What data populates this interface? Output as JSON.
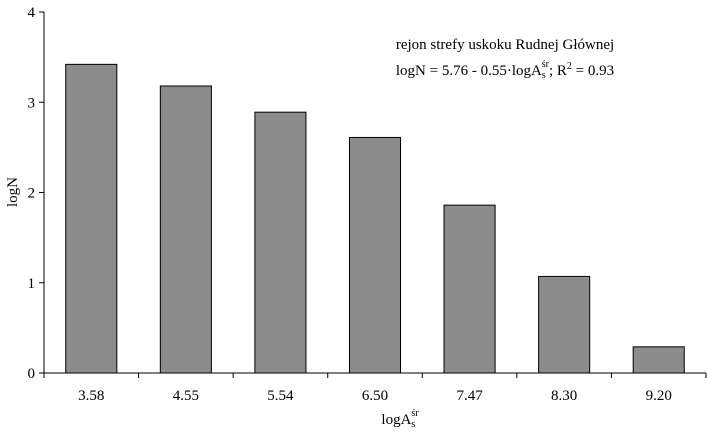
{
  "chart_data": {
    "type": "bar",
    "categories": [
      "3.58",
      "4.55",
      "5.54",
      "6.50",
      "7.47",
      "8.30",
      "9.20"
    ],
    "values": [
      3.42,
      3.18,
      2.89,
      2.61,
      1.86,
      1.07,
      0.29
    ],
    "xlabel": {
      "base": "logA",
      "sub": "s",
      "sup": "śr"
    },
    "ylabel": "logN",
    "ylim": [
      0,
      4
    ],
    "yticks": [
      "0",
      "1",
      "2",
      "3",
      "4"
    ],
    "grid": false,
    "annotation": {
      "line1": "rejon strefy uskoku Rudnej Głównej",
      "eq_prefix": "logN = 5.76 - 0.55·logA",
      "eq_sub": "s",
      "eq_sup": "śr",
      "eq_sep": ";  R",
      "r2_sup": "2",
      "r2_value": " = 0.93"
    },
    "colors": {
      "bar": "#8c8c8c",
      "bar_border": "#000000"
    }
  }
}
